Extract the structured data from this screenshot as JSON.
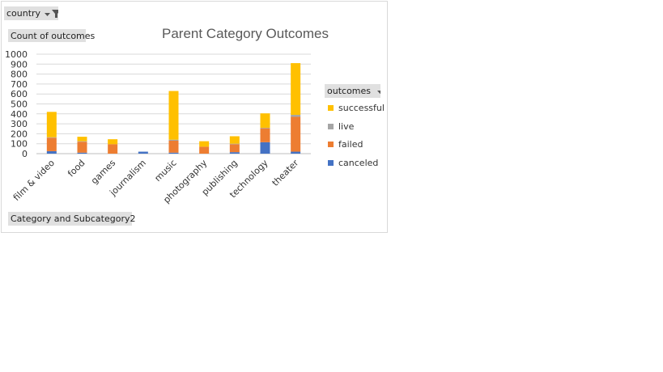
{
  "filters": {
    "country_label": "country",
    "count_label": "Count of outcomes",
    "category_label": "Category and Subcategory2",
    "outcomes_label": "outcomes"
  },
  "chart_data": {
    "type": "bar",
    "stacked": true,
    "title": "Parent Category Outcomes",
    "ylim": [
      0,
      1000
    ],
    "yticks": [
      0,
      100,
      200,
      300,
      400,
      500,
      600,
      700,
      800,
      900,
      1000
    ],
    "categories": [
      "film & video",
      "food",
      "games",
      "journalism",
      "music",
      "photography",
      "publishing",
      "technology",
      "theater"
    ],
    "series": [
      {
        "name": "canceled",
        "color": "#4472c4",
        "values": [
          25,
          10,
          0,
          20,
          10,
          0,
          15,
          115,
          20
        ]
      },
      {
        "name": "failed",
        "color": "#ed7d31",
        "values": [
          135,
          110,
          95,
          0,
          120,
          70,
          80,
          140,
          350
        ]
      },
      {
        "name": "live",
        "color": "#a5a5a5",
        "values": [
          5,
          5,
          0,
          0,
          10,
          0,
          5,
          5,
          20
        ]
      },
      {
        "name": "successful",
        "color": "#ffc000",
        "values": [
          255,
          45,
          50,
          0,
          490,
          55,
          75,
          145,
          520
        ]
      }
    ],
    "legend_order": [
      "successful",
      "live",
      "failed",
      "canceled"
    ],
    "legend_position": "right",
    "grid": true
  }
}
